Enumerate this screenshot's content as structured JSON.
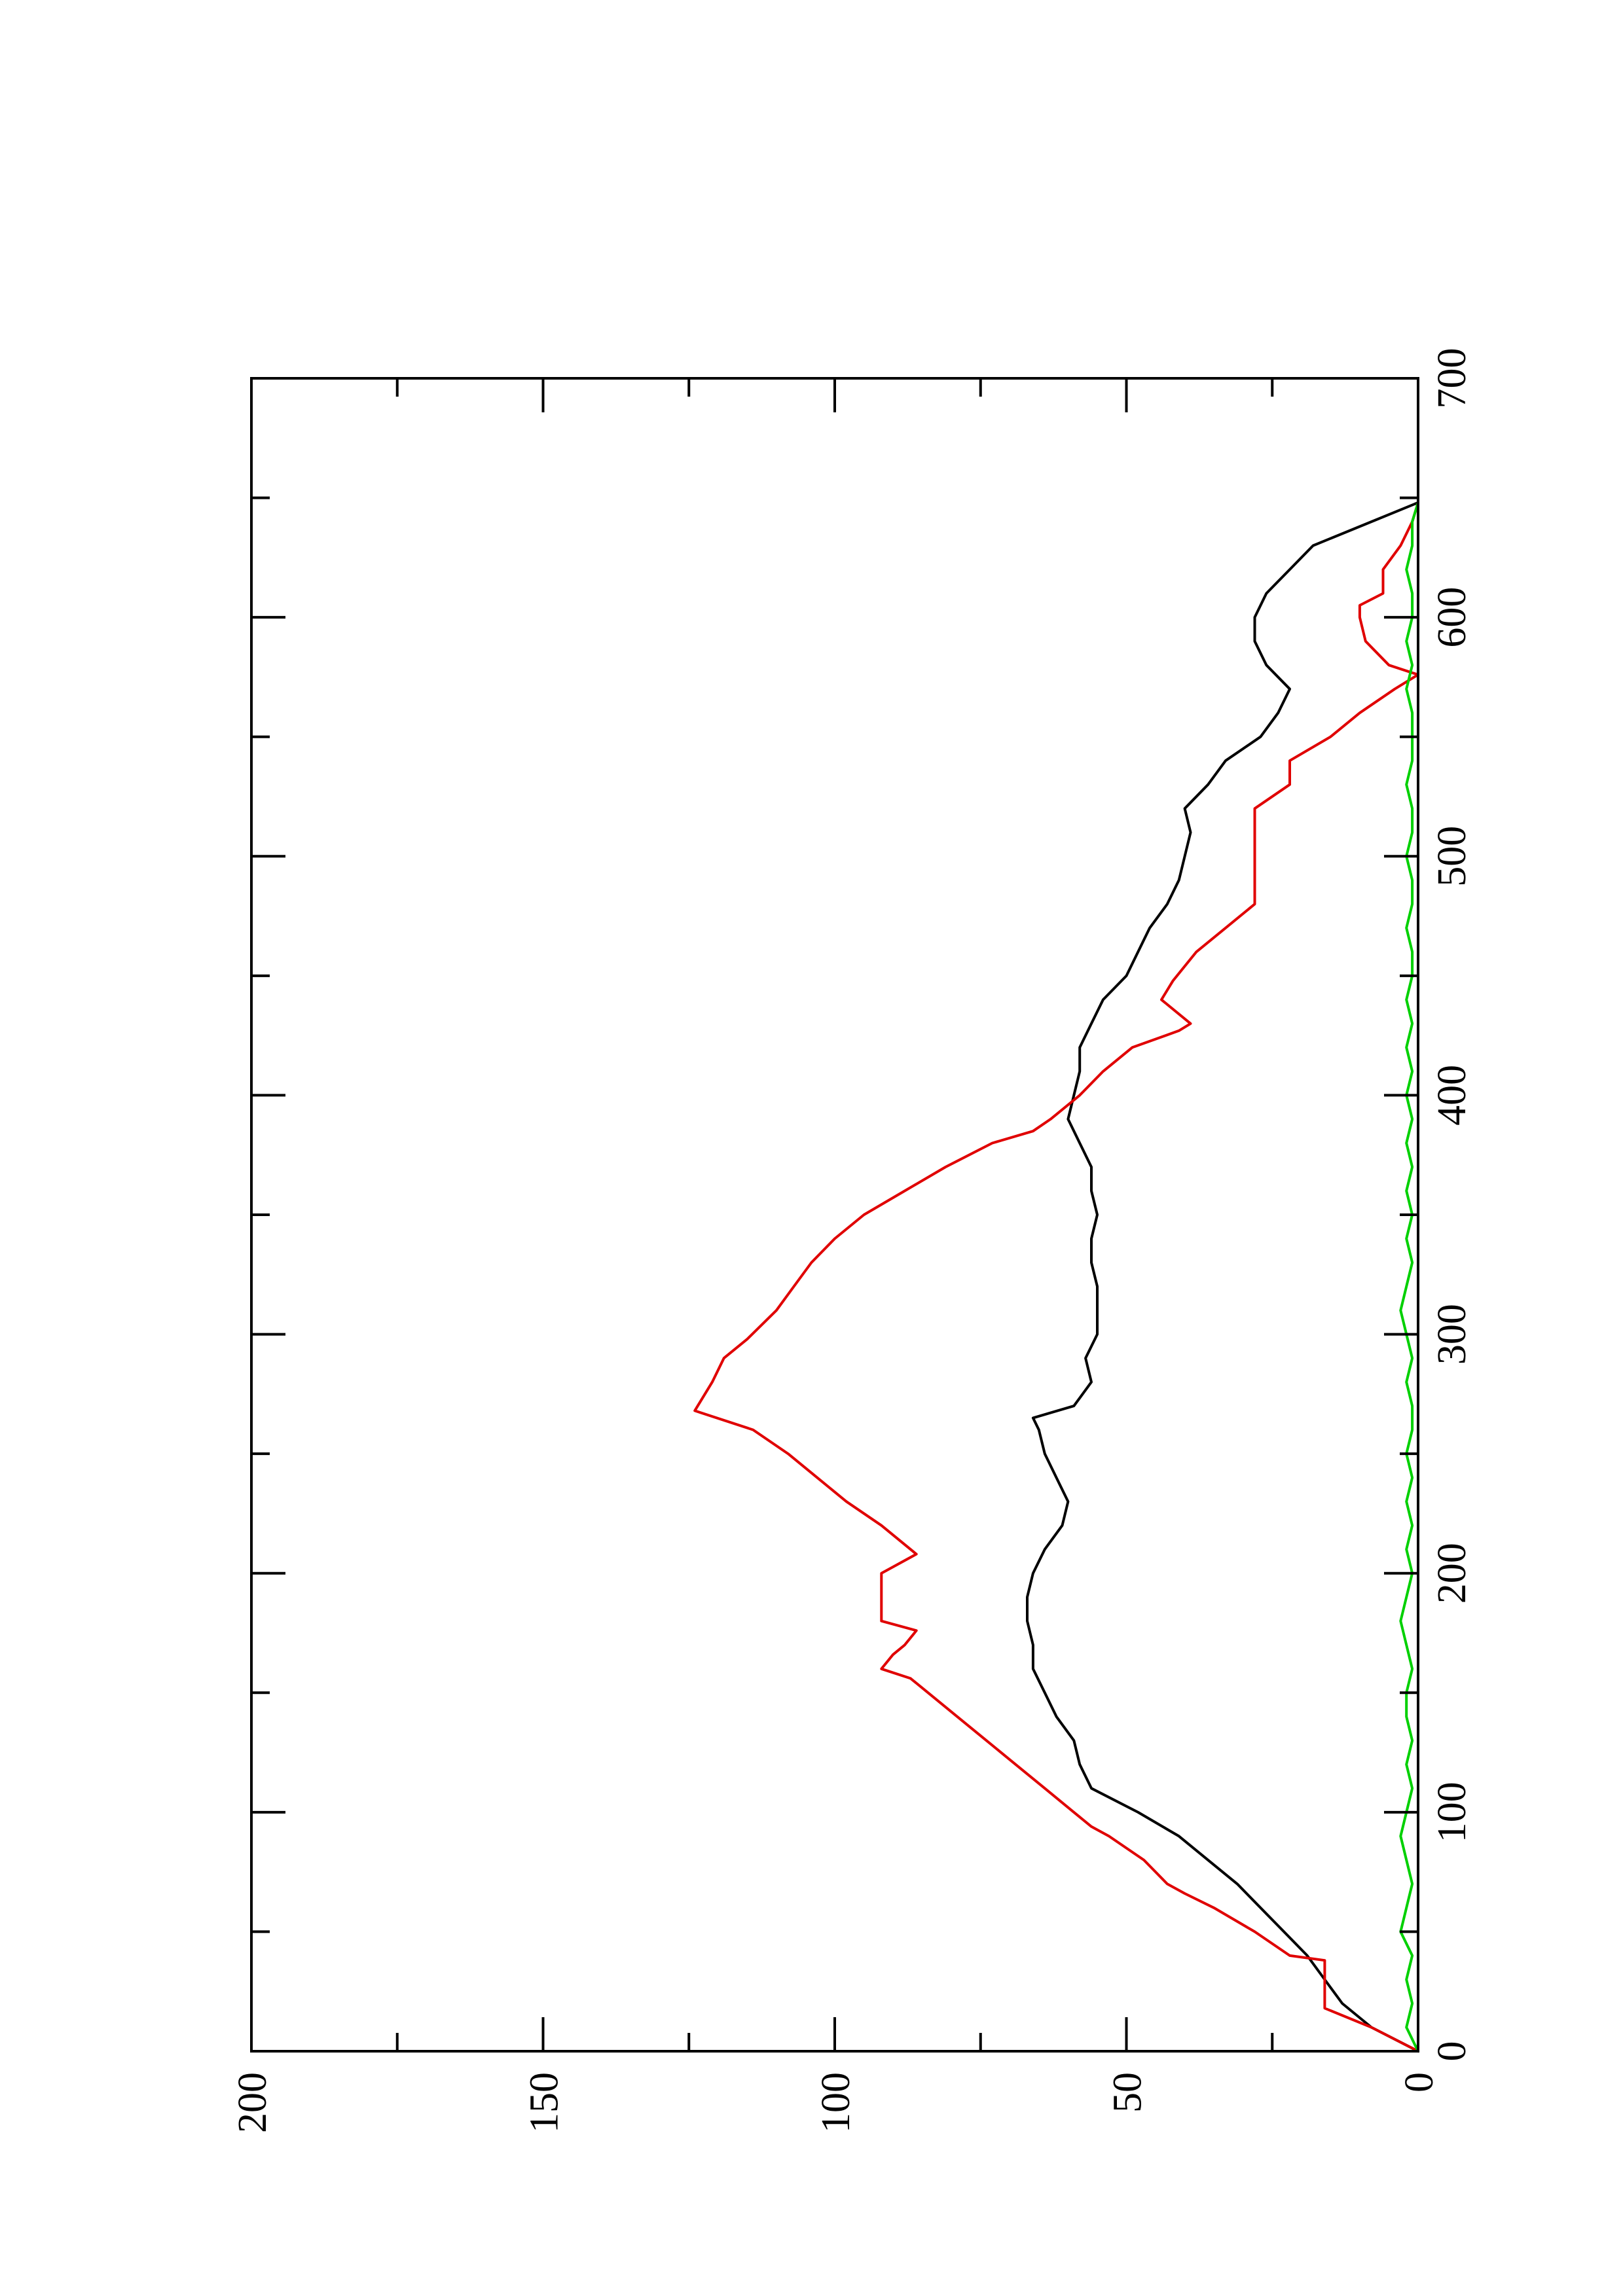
{
  "chart_data": {
    "type": "line",
    "title": "",
    "xlabel": "",
    "ylabel": "",
    "orientation": "rotated-90-ccw",
    "xlim": [
      0,
      700
    ],
    "ylim": [
      0,
      200
    ],
    "x_ticks": [
      0,
      100,
      200,
      300,
      400,
      500,
      600,
      700
    ],
    "x_minor_ticks": [
      50,
      150,
      250,
      350,
      450,
      550,
      650
    ],
    "y_ticks": [
      0,
      50,
      100,
      150,
      200
    ],
    "y_minor_ticks": [
      25,
      75,
      125,
      175
    ],
    "grid": false,
    "legend": "none",
    "series": [
      {
        "color": "#000000",
        "x": [
          0,
          10,
          20,
          30,
          40,
          50,
          60,
          70,
          80,
          90,
          100,
          110,
          120,
          130,
          140,
          150,
          160,
          170,
          180,
          190,
          200,
          210,
          220,
          230,
          240,
          250,
          260,
          265,
          270,
          280,
          290,
          300,
          310,
          320,
          330,
          340,
          350,
          360,
          370,
          380,
          390,
          400,
          410,
          420,
          430,
          440,
          450,
          460,
          470,
          480,
          490,
          500,
          510,
          520,
          530,
          540,
          550,
          560,
          570,
          580,
          590,
          600,
          610,
          620,
          630,
          640,
          648
        ],
        "y": [
          0,
          8,
          13,
          16,
          19,
          23,
          27,
          31,
          36,
          41,
          48,
          56,
          58,
          59,
          62,
          64,
          66,
          66,
          67,
          67,
          66,
          64,
          61,
          60,
          62,
          64,
          65,
          66,
          59,
          56,
          57,
          55,
          55,
          55,
          56,
          56,
          55,
          56,
          56,
          58,
          60,
          59,
          58,
          58,
          56,
          54,
          50,
          48,
          46,
          43,
          41,
          40,
          39,
          40,
          36,
          33,
          27,
          24,
          22,
          26,
          28,
          28,
          26,
          22,
          18,
          8,
          0
        ]
      },
      {
        "color": "#e00000",
        "x": [
          0,
          10,
          18,
          20,
          38,
          40,
          50,
          60,
          66,
          70,
          80,
          90,
          94,
          100,
          110,
          120,
          130,
          140,
          150,
          156,
          160,
          166,
          170,
          176,
          180,
          190,
          200,
          208,
          220,
          230,
          240,
          250,
          260,
          268,
          280,
          290,
          298,
          310,
          320,
          330,
          340,
          350,
          360,
          370,
          380,
          385,
          390,
          400,
          410,
          420,
          427,
          430,
          440,
          448,
          460,
          470,
          480,
          500,
          505,
          520,
          530,
          540,
          550,
          560,
          570,
          576,
          580,
          590,
          600,
          605,
          610,
          615,
          620,
          630,
          640,
          648
        ],
        "y": [
          0,
          8,
          16,
          16,
          16,
          22,
          28,
          35,
          40,
          43,
          47,
          53,
          56,
          59,
          64,
          69,
          74,
          79,
          84,
          87,
          92,
          90,
          88,
          86,
          92,
          92,
          92,
          86,
          92,
          98,
          103,
          108,
          114,
          124,
          121,
          119,
          115,
          110,
          107,
          104,
          100,
          95,
          88,
          81,
          73,
          66,
          63,
          58,
          54,
          49,
          41,
          39,
          44,
          42,
          38,
          33,
          28,
          28,
          28,
          28,
          22,
          22,
          15,
          10,
          4,
          0,
          5,
          9,
          10,
          10,
          6,
          6,
          6,
          3,
          1,
          0
        ]
      },
      {
        "color": "#00d000",
        "x": [
          0,
          10,
          20,
          30,
          40,
          50,
          60,
          70,
          80,
          90,
          100,
          110,
          120,
          130,
          140,
          150,
          160,
          170,
          180,
          190,
          200,
          210,
          220,
          230,
          240,
          250,
          260,
          270,
          280,
          290,
          300,
          310,
          320,
          330,
          340,
          350,
          360,
          370,
          380,
          390,
          400,
          410,
          420,
          430,
          440,
          450,
          460,
          470,
          480,
          490,
          500,
          510,
          520,
          530,
          540,
          550,
          560,
          570,
          580,
          590,
          600,
          610,
          620,
          630,
          640,
          648
        ],
        "y": [
          0,
          2,
          1,
          2,
          1,
          3,
          2,
          1,
          2,
          3,
          2,
          1,
          2,
          1,
          2,
          2,
          1,
          2,
          3,
          2,
          1,
          2,
          1,
          2,
          1,
          2,
          1,
          1,
          2,
          1,
          2,
          3,
          2,
          1,
          2,
          1,
          2,
          1,
          2,
          1,
          2,
          1,
          2,
          1,
          2,
          1,
          1,
          2,
          1,
          1,
          2,
          1,
          1,
          2,
          1,
          1,
          1,
          2,
          1,
          2,
          1,
          1,
          2,
          1,
          1,
          0
        ]
      }
    ]
  }
}
